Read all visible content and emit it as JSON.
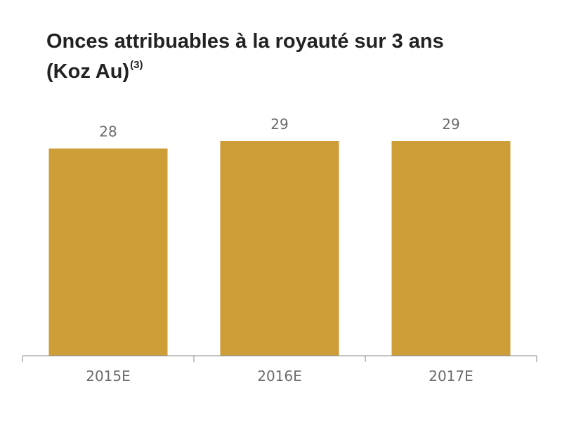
{
  "title": {
    "main": "Onces attribuables à la royauté sur 3 ans",
    "line2": "(Koz Au)",
    "superscript": "(3)"
  },
  "colors": {
    "bar": "#CD9D37",
    "axis": "#888888",
    "label": "#6b6b6b",
    "title": "#222222"
  },
  "chart_data": {
    "type": "bar",
    "title": "Onces attribuables à la royauté sur 3 ans (Koz Au)(3)",
    "categories": [
      "2015E",
      "2016E",
      "2017E"
    ],
    "values": [
      28,
      29,
      29
    ],
    "data_labels": [
      "28",
      "29",
      "29"
    ],
    "xlabel": "",
    "ylabel": "",
    "ylim": [
      0,
      29
    ],
    "grid": false,
    "legend": "none"
  }
}
